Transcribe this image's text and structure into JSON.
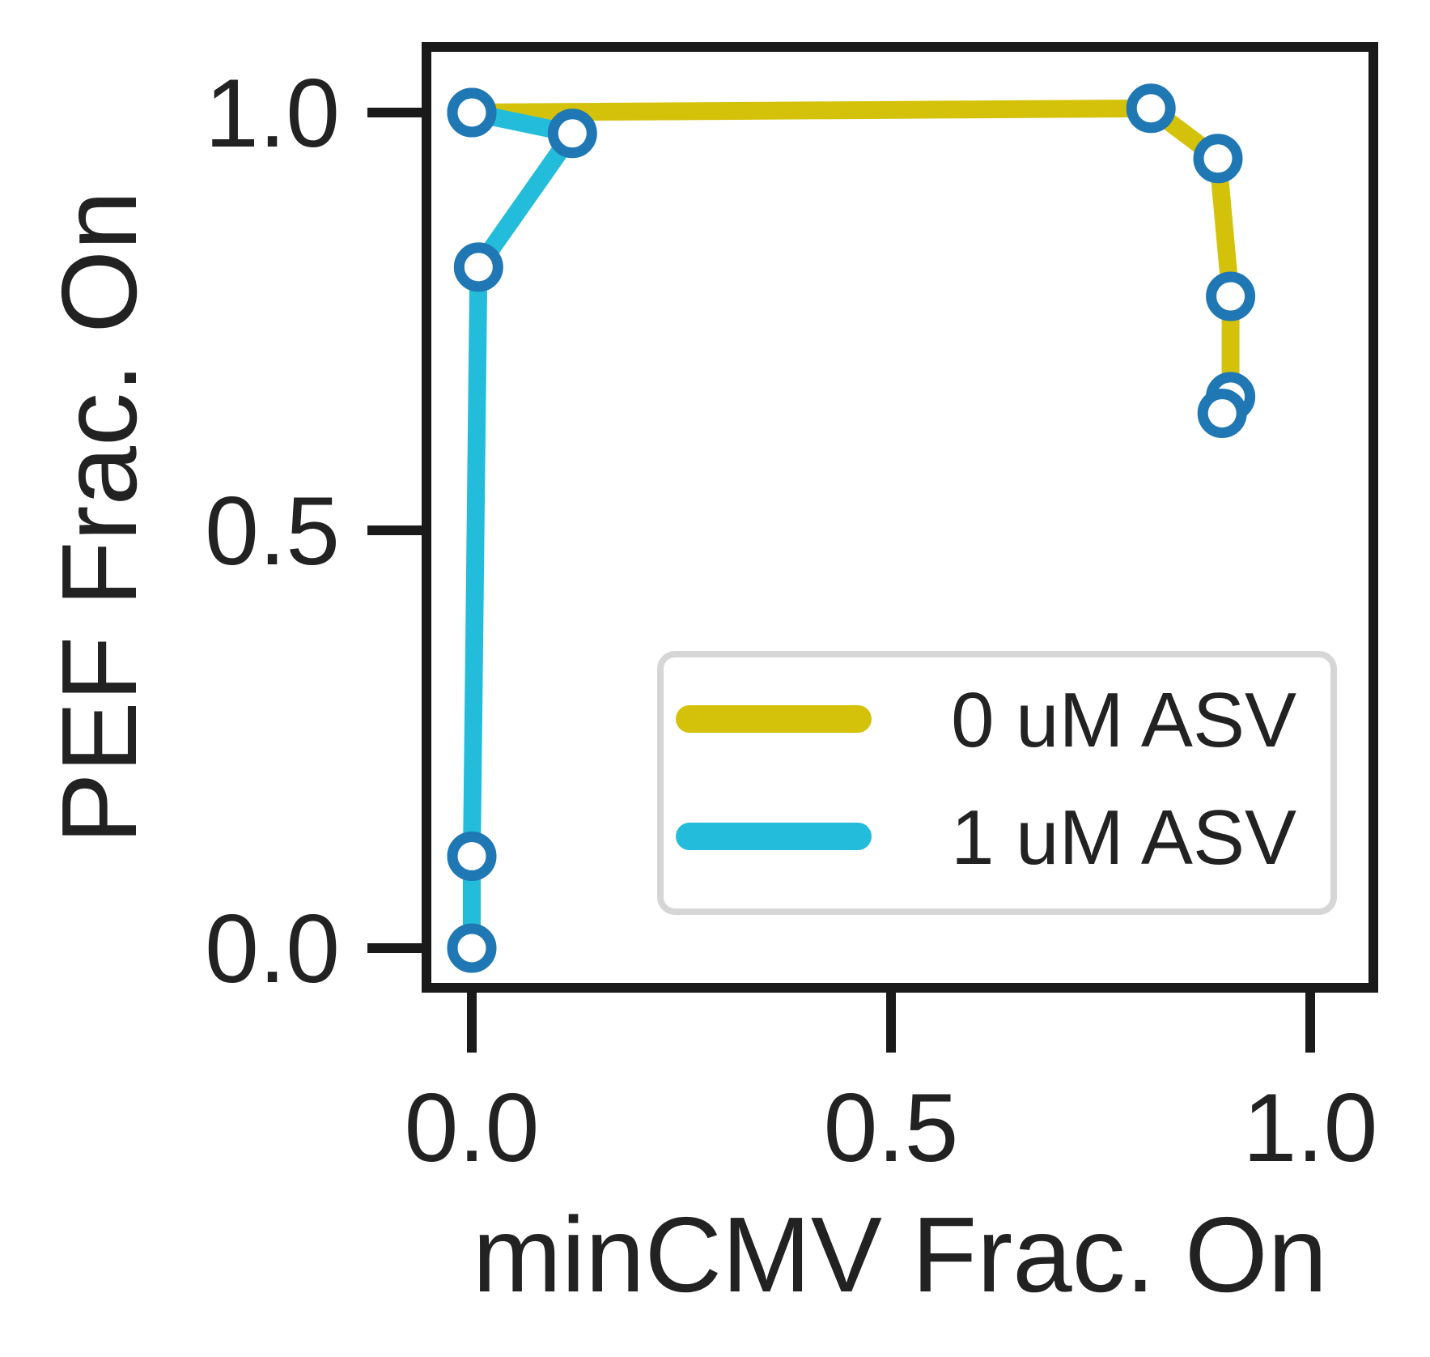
{
  "chart_data": {
    "type": "line",
    "title": "",
    "xlabel": "minCMV Frac. On",
    "ylabel": "PEF Frac. On",
    "xlim": [
      -0.05,
      1.08
    ],
    "ylim": [
      -0.05,
      1.08
    ],
    "xticks": [
      0.0,
      0.5,
      1.0
    ],
    "yticks": [
      0.0,
      0.5,
      1.0
    ],
    "xtick_labels": [
      "0.0",
      "0.5",
      "1.0"
    ],
    "ytick_labels": [
      "0.0",
      "0.5",
      "1.0"
    ],
    "grid": false,
    "legend_position": "center-right",
    "marker": {
      "style": "open-circle",
      "edge_color": "#1f77b4",
      "face_color": "#ffffff"
    },
    "series": [
      {
        "name": "0 uM ASV",
        "color": "#d4c20a",
        "points": [
          [
            0.0,
            1.0
          ],
          [
            0.81,
            1.005
          ],
          [
            0.89,
            0.945
          ],
          [
            0.905,
            0.78
          ],
          [
            0.905,
            0.66
          ],
          [
            0.895,
            0.64
          ]
        ]
      },
      {
        "name": "1 uM ASV",
        "color": "#23bcdb",
        "points": [
          [
            0.0,
            0.0
          ],
          [
            0.0,
            0.11
          ],
          [
            0.008,
            0.815
          ],
          [
            0.12,
            0.975
          ],
          [
            0.0,
            1.0
          ]
        ]
      }
    ]
  }
}
